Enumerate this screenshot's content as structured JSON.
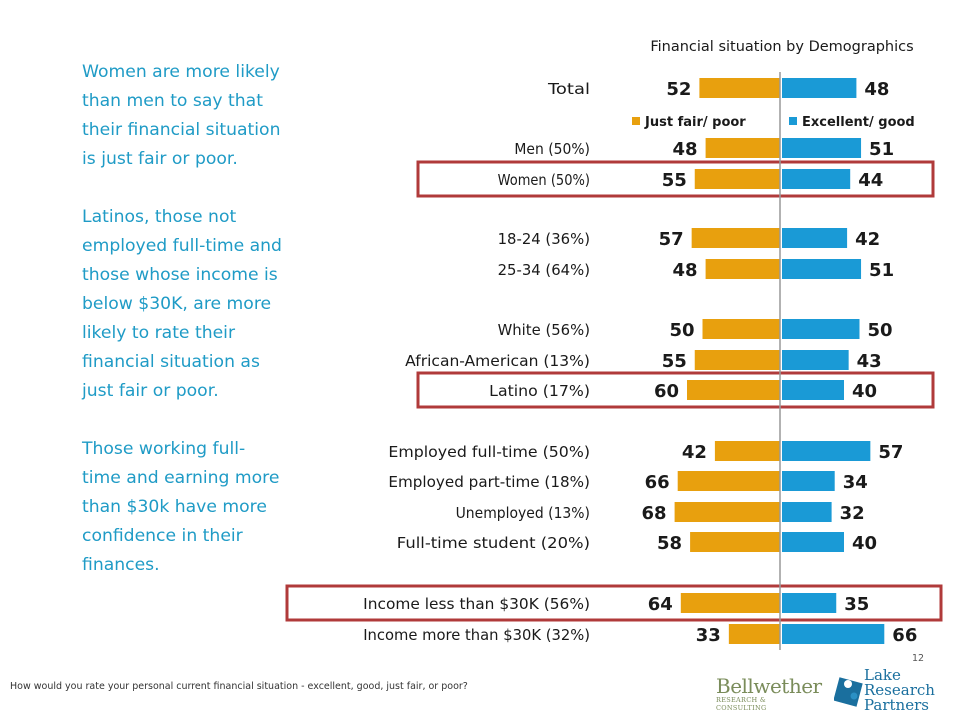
{
  "narrative": [
    "Women are more likely than men to say that their financial situation is just fair or poor.",
    "Latinos, those not employed full-time and those whose income is below $30K, are more likely to rate their financial situation as just fair or poor.",
    "Those working full-time and earning more than $30k have more confidence in their finances."
  ],
  "footnote": "How would you rate your personal current financial situation - excellent, good, just fair, or poor?",
  "page_number": "12",
  "logos": {
    "bellwether_main": "Bellwether",
    "bellwether_sub": "RESEARCH & CONSULTING",
    "lrp_line1": "Lake",
    "lrp_line2": "Research",
    "lrp_line3": "Partners"
  },
  "colors": {
    "narrative_text": "#1f9bc6",
    "just_fair_poor": "#e8a00e",
    "excellent_good": "#1a9ad6",
    "highlight_box": "#b03a3a",
    "axis": "#999999"
  },
  "chart_data": {
    "type": "bar",
    "title": "Financial situation by Demographics",
    "categories": [
      "Total",
      "Men (50%)",
      "Women (50%)",
      "18-24 (36%)",
      "25-34 (64%)",
      "White (56%)",
      "African-American (13%)",
      "Latino (17%)",
      "Employed full-time (50%)",
      "Employed part-time (18%)",
      "Unemployed (13%)",
      "Full-time student (20%)",
      "Income less than $30K (56%)",
      "Income more than $30K (32%)"
    ],
    "series": [
      {
        "name": "Just fair/ poor",
        "values": [
          52,
          48,
          55,
          57,
          48,
          50,
          55,
          60,
          42,
          66,
          68,
          58,
          64,
          33
        ]
      },
      {
        "name": "Excellent/ good",
        "values": [
          48,
          51,
          44,
          42,
          51,
          50,
          43,
          40,
          57,
          34,
          32,
          40,
          35,
          66
        ]
      }
    ],
    "highlighted": [
      "Women (50%)",
      "Latino (17%)",
      "Income less than $30K (56%)"
    ],
    "orientation": "diverging horizontal",
    "legend": "below Total row, centered on axis",
    "grid": false
  }
}
